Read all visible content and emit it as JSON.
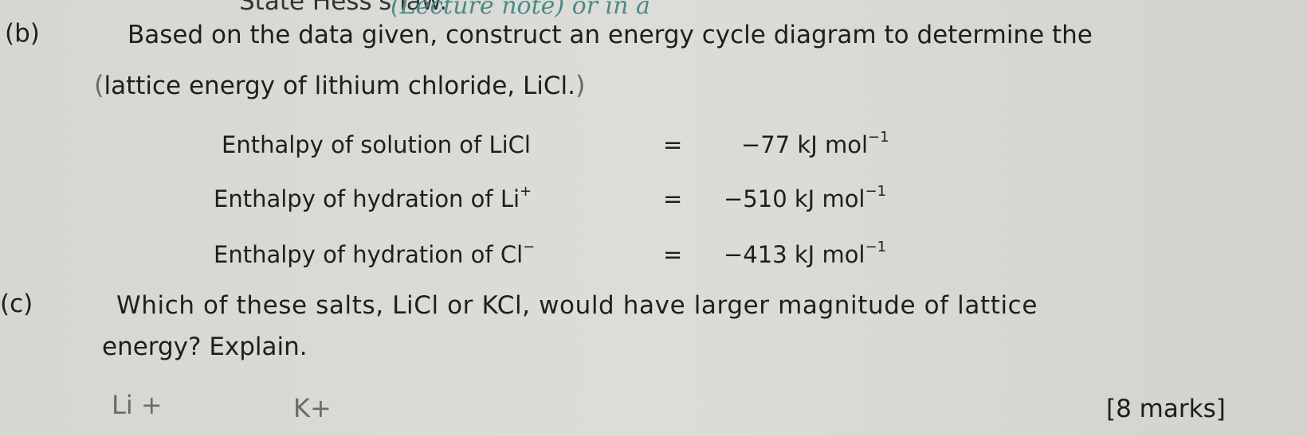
{
  "prev_question": {
    "text": "State Hess's law."
  },
  "handwriting_top": "(Lecture note)   or   in a",
  "part_b": {
    "label": "(b)",
    "line1": "Based on the data given, construct an energy cycle diagram to determine the",
    "line2": "lattice energy of lithium chloride, LiCl.",
    "bracket_open": "(",
    "bracket_close": ")",
    "data": [
      {
        "name": "Enthalpy of solution of LiCl",
        "ion_sup": "",
        "eq": "=",
        "value": "−77",
        "unit": "kJ mol",
        "unit_sup": "−1"
      },
      {
        "name": "Enthalpy of hydration of Li",
        "ion_sup": "+",
        "eq": "=",
        "value": "−510",
        "unit": "kJ mol",
        "unit_sup": "−1"
      },
      {
        "name": "Enthalpy of hydration of Cl",
        "ion_sup": "−",
        "eq": "=",
        "value": "−413",
        "unit": "kJ mol",
        "unit_sup": "−1"
      }
    ]
  },
  "part_c": {
    "label": "(c)",
    "line1": "Which of these salts, LiCl or KCl, would have larger magnitude of lattice",
    "line2": "energy? Explain."
  },
  "handwriting_bottom": [
    "Li +",
    "K+"
  ],
  "marks": "[8 marks]"
}
